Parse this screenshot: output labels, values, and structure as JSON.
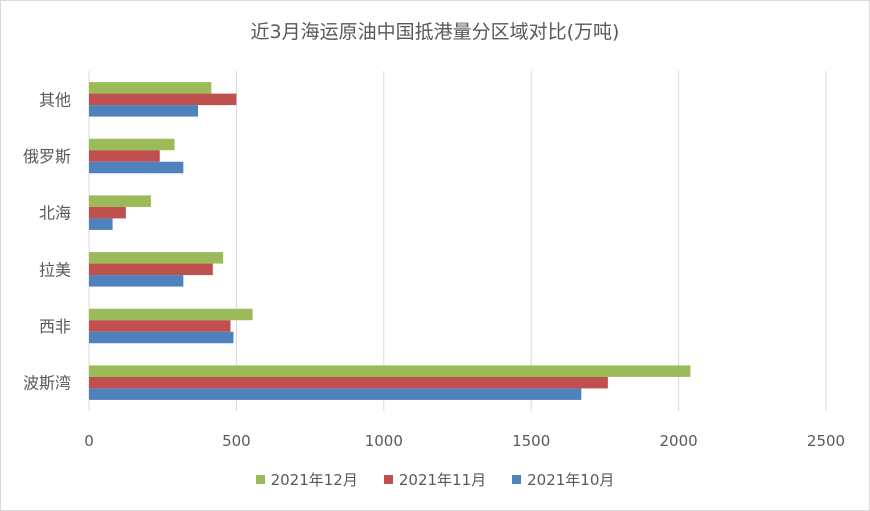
{
  "chart_data": {
    "type": "bar",
    "orientation": "horizontal",
    "title": "近3月海运原油中国抵港量分区域对比(万吨)",
    "categories": [
      "其他",
      "俄罗斯",
      "北海",
      "拉美",
      "西非",
      "波斯湾"
    ],
    "series": [
      {
        "name": "2021年12月",
        "color": "#9bbb59",
        "values": [
          415,
          290,
          210,
          455,
          555,
          2040
        ]
      },
      {
        "name": "2021年11月",
        "color": "#c0504d",
        "values": [
          500,
          240,
          125,
          420,
          480,
          1760
        ]
      },
      {
        "name": "2021年10月",
        "color": "#4f81bd",
        "values": [
          370,
          320,
          80,
          320,
          490,
          1670
        ]
      }
    ],
    "xlim": [
      0,
      2500
    ],
    "xticks": [
      "0",
      "500",
      "1000",
      "1500",
      "2000",
      "2500"
    ],
    "grid": true,
    "legend_position": "bottom"
  }
}
